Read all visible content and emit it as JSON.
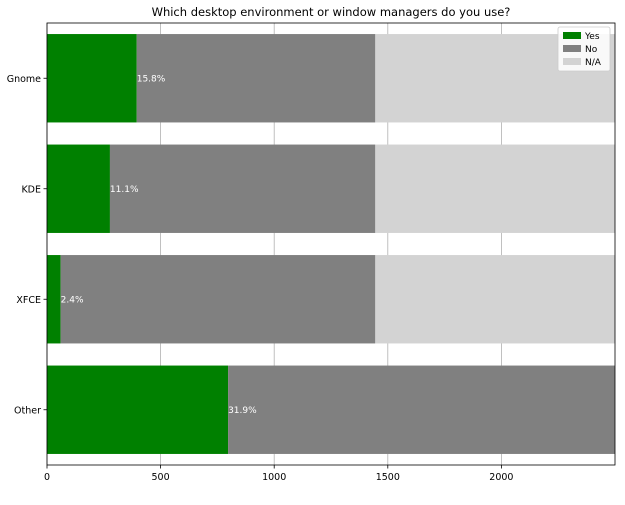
{
  "chart_data": {
    "type": "bar",
    "orientation": "horizontal",
    "stacked": true,
    "title": "Which desktop environment or window managers do you use?",
    "xlabel": "",
    "ylabel": "",
    "categories": [
      "Gnome",
      "KDE",
      "XFCE",
      "Other"
    ],
    "series": [
      {
        "name": "Yes",
        "color": "#008000",
        "values": [
          395,
          277,
          60,
          797
        ]
      },
      {
        "name": "No",
        "color": "#808080",
        "values": [
          1050,
          1168,
          1385,
          1703
        ]
      },
      {
        "name": "N/A",
        "color": "#d3d3d3",
        "values": [
          1055,
          1055,
          1055,
          0
        ]
      }
    ],
    "data_labels": [
      "15.8%",
      "11.1%",
      "2.4%",
      "31.9%"
    ],
    "xlim": [
      0,
      2500
    ],
    "xticks": [
      0,
      500,
      1000,
      1500,
      2000
    ],
    "xtick_labels": [
      "0",
      "500",
      "1000",
      "1500",
      "2000"
    ],
    "grid": "vertical",
    "legend_position": "upper-right"
  }
}
